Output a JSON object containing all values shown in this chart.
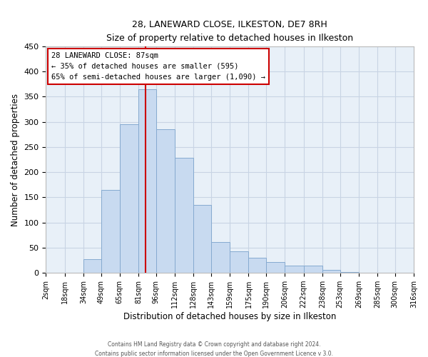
{
  "title": "28, LANEWARD CLOSE, ILKESTON, DE7 8RH",
  "subtitle": "Size of property relative to detached houses in Ilkeston",
  "xlabel": "Distribution of detached houses by size in Ilkeston",
  "ylabel": "Number of detached properties",
  "bar_color": "#c8daf0",
  "bar_edge_color": "#85aad0",
  "background_color": "#ffffff",
  "axes_bg_color": "#e8f0f8",
  "grid_color": "#c8d4e4",
  "vline_x": 87,
  "vline_color": "#cc0000",
  "annotation_line1": "28 LANEWARD CLOSE: 87sqm",
  "annotation_line2": "← 35% of detached houses are smaller (595)",
  "annotation_line3": "65% of semi-detached houses are larger (1,090) →",
  "annotation_box_color": "#ffffff",
  "annotation_box_edge": "#cc0000",
  "bins": [
    2,
    18,
    34,
    49,
    65,
    81,
    96,
    112,
    128,
    143,
    159,
    175,
    190,
    206,
    222,
    238,
    253,
    269,
    285,
    300,
    316
  ],
  "counts": [
    0,
    0,
    27,
    165,
    295,
    365,
    285,
    228,
    135,
    62,
    43,
    30,
    22,
    14,
    14,
    6,
    2,
    1,
    0,
    0
  ],
  "tick_labels": [
    "2sqm",
    "18sqm",
    "34sqm",
    "49sqm",
    "65sqm",
    "81sqm",
    "96sqm",
    "112sqm",
    "128sqm",
    "143sqm",
    "159sqm",
    "175sqm",
    "190sqm",
    "206sqm",
    "222sqm",
    "238sqm",
    "253sqm",
    "269sqm",
    "285sqm",
    "300sqm",
    "316sqm"
  ],
  "ylim": [
    0,
    450
  ],
  "yticks": [
    0,
    50,
    100,
    150,
    200,
    250,
    300,
    350,
    400,
    450
  ],
  "footer_line1": "Contains HM Land Registry data © Crown copyright and database right 2024.",
  "footer_line2": "Contains public sector information licensed under the Open Government Licence v 3.0."
}
